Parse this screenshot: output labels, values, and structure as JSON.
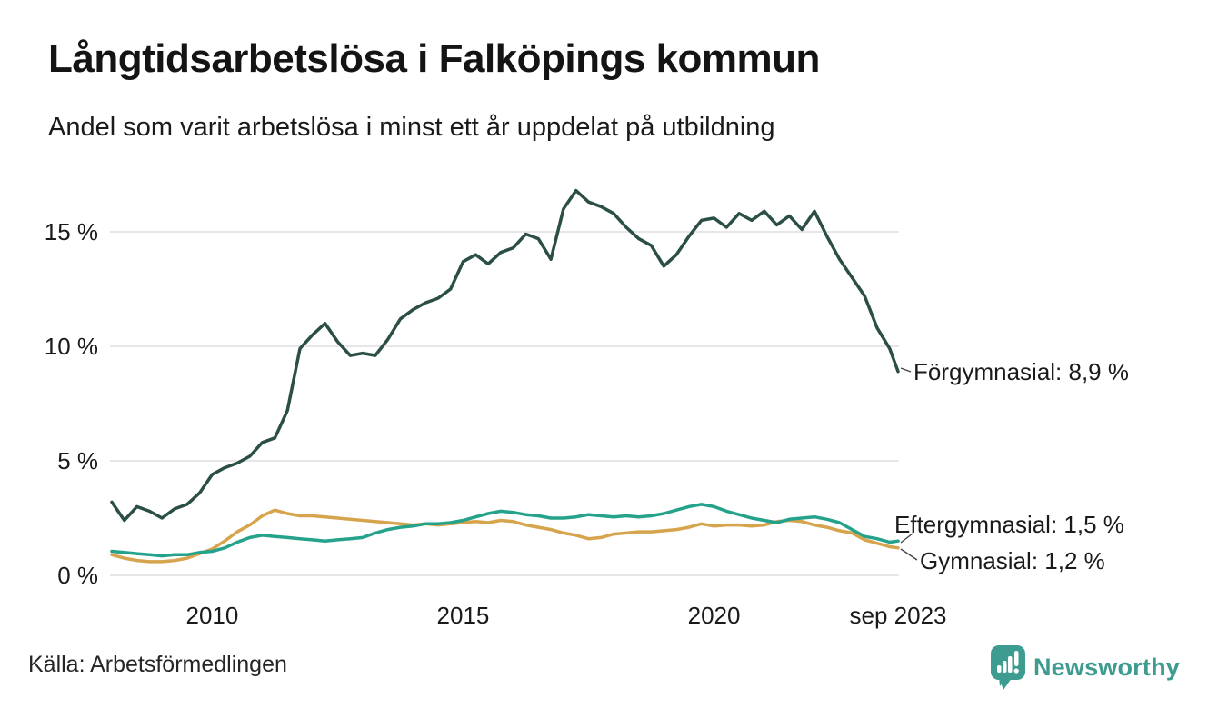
{
  "header": {
    "title": "Långtidsarbetslösa i Falköpings kommun",
    "subtitle": "Andel som varit arbetslösa i minst ett år uppdelat på utbildning"
  },
  "footer": {
    "source": "Källa: Arbetsförmedlingen",
    "brand": "Newsworthy"
  },
  "colors": {
    "forgymnasial": "#2b4e47",
    "eftergymnasial": "#25a28b",
    "gymnasial": "#d6a44c",
    "gridline": "#e7e7ea",
    "text": "#1a1a1a",
    "connector": "#444444",
    "brand_teal": "#3d9b90"
  },
  "chart_data": {
    "type": "line",
    "title": "Långtidsarbetslösa i Falköpings kommun",
    "subtitle": "Andel som varit arbetslösa i minst ett år uppdelat på utbildning",
    "unit": "%",
    "x_range": [
      2008,
      2023.667
    ],
    "ylim": [
      0,
      17
    ],
    "grid": "horizontal",
    "legend_position": "end-of-line-labels",
    "x": [
      2008,
      2008.25,
      2008.5,
      2008.75,
      2009,
      2009.25,
      2009.5,
      2009.75,
      2010,
      2010.25,
      2010.5,
      2010.75,
      2011,
      2011.25,
      2011.5,
      2011.75,
      2012,
      2012.25,
      2012.5,
      2012.75,
      2013,
      2013.25,
      2013.5,
      2013.75,
      2014,
      2014.25,
      2014.5,
      2014.75,
      2015,
      2015.25,
      2015.5,
      2015.75,
      2016,
      2016.25,
      2016.5,
      2016.75,
      2017,
      2017.25,
      2017.5,
      2017.75,
      2018,
      2018.25,
      2018.5,
      2018.75,
      2019,
      2019.25,
      2019.5,
      2019.75,
      2020,
      2020.25,
      2020.5,
      2020.75,
      2021,
      2021.25,
      2021.5,
      2021.75,
      2022,
      2022.25,
      2022.5,
      2022.75,
      2023,
      2023.25,
      2023.5,
      2023.667
    ],
    "series": [
      {
        "name": "Förgymnasial",
        "end_label": "Förgymnasial: 8,9 %",
        "end_value": 8.9,
        "color": "#2b4e47",
        "values": [
          3.2,
          2.4,
          3.0,
          2.8,
          2.5,
          2.9,
          3.1,
          3.6,
          4.4,
          4.7,
          4.9,
          5.2,
          5.8,
          6.0,
          7.2,
          9.9,
          10.5,
          11.0,
          10.2,
          9.6,
          9.7,
          9.6,
          10.3,
          11.2,
          11.6,
          11.9,
          12.1,
          12.5,
          13.7,
          14.0,
          13.6,
          14.1,
          14.3,
          14.9,
          14.7,
          13.8,
          16.0,
          16.8,
          16.3,
          16.1,
          15.8,
          15.2,
          14.7,
          14.4,
          13.5,
          14.0,
          14.8,
          15.5,
          15.6,
          15.2,
          15.8,
          15.5,
          15.9,
          15.3,
          15.7,
          15.1,
          15.9,
          14.8,
          13.8,
          13.0,
          12.2,
          10.8,
          9.9,
          8.9
        ]
      },
      {
        "name": "Eftergymnasial",
        "end_label": "Eftergymnasial: 1,5 %",
        "end_value": 1.5,
        "color": "#25a28b",
        "values": [
          1.05,
          1.0,
          0.95,
          0.9,
          0.85,
          0.9,
          0.9,
          1.0,
          1.05,
          1.2,
          1.45,
          1.65,
          1.75,
          1.7,
          1.65,
          1.6,
          1.55,
          1.5,
          1.55,
          1.6,
          1.65,
          1.85,
          2.0,
          2.1,
          2.15,
          2.25,
          2.25,
          2.3,
          2.4,
          2.55,
          2.7,
          2.8,
          2.75,
          2.65,
          2.6,
          2.5,
          2.5,
          2.55,
          2.65,
          2.6,
          2.55,
          2.6,
          2.55,
          2.6,
          2.7,
          2.85,
          3.0,
          3.1,
          3.0,
          2.8,
          2.65,
          2.5,
          2.4,
          2.3,
          2.45,
          2.5,
          2.55,
          2.45,
          2.3,
          2.0,
          1.7,
          1.6,
          1.45,
          1.5
        ]
      },
      {
        "name": "Gymnasial",
        "end_label": "Gymnasial: 1,2 %",
        "end_value": 1.2,
        "color": "#d6a44c",
        "values": [
          0.9,
          0.75,
          0.65,
          0.6,
          0.6,
          0.65,
          0.75,
          0.95,
          1.15,
          1.5,
          1.9,
          2.2,
          2.6,
          2.85,
          2.7,
          2.6,
          2.6,
          2.55,
          2.5,
          2.45,
          2.4,
          2.35,
          2.3,
          2.25,
          2.2,
          2.25,
          2.2,
          2.25,
          2.3,
          2.35,
          2.3,
          2.4,
          2.35,
          2.2,
          2.1,
          2.0,
          1.85,
          1.75,
          1.6,
          1.65,
          1.8,
          1.85,
          1.9,
          1.9,
          1.95,
          2.0,
          2.1,
          2.25,
          2.15,
          2.2,
          2.2,
          2.15,
          2.2,
          2.35,
          2.4,
          2.35,
          2.2,
          2.1,
          1.95,
          1.85,
          1.55,
          1.4,
          1.25,
          1.2
        ]
      }
    ],
    "y_ticks": [
      {
        "label": "0 %",
        "value": 0
      },
      {
        "label": "5 %",
        "value": 5
      },
      {
        "label": "10 %",
        "value": 10
      },
      {
        "label": "15 %",
        "value": 15
      }
    ],
    "x_ticks": [
      {
        "label": "2010",
        "value": 2010
      },
      {
        "label": "2015",
        "value": 2015
      },
      {
        "label": "2020",
        "value": 2020
      },
      {
        "label": "sep 2023",
        "value": 2023.667
      }
    ]
  }
}
